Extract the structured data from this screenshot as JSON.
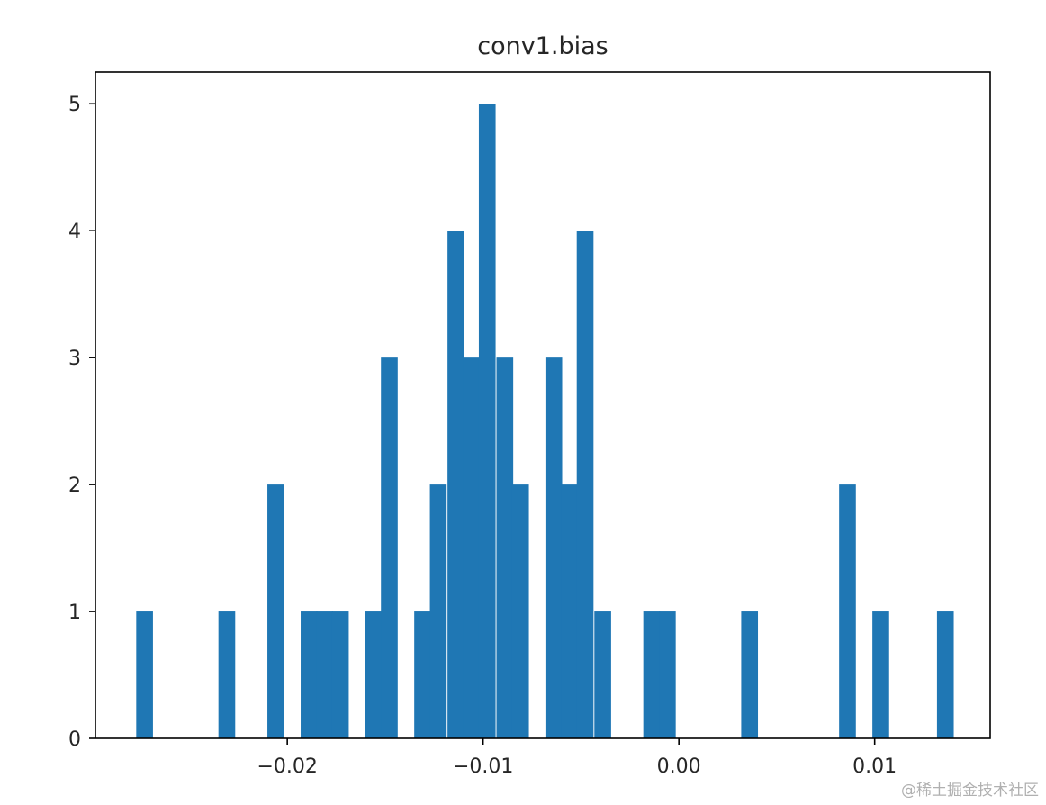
{
  "chart_data": {
    "type": "bar",
    "title": "conv1.bias",
    "xlabel": "",
    "ylabel": "",
    "xlim": [
      -0.0298,
      0.0159
    ],
    "ylim": [
      0,
      5.25
    ],
    "bin_width": 0.000833,
    "bars": [
      {
        "x": -0.0273,
        "y": 1
      },
      {
        "x": -0.0231,
        "y": 1
      },
      {
        "x": -0.0206,
        "y": 2
      },
      {
        "x": -0.0189,
        "y": 1
      },
      {
        "x": -0.0181,
        "y": 1
      },
      {
        "x": -0.0173,
        "y": 1
      },
      {
        "x": -0.0156,
        "y": 1
      },
      {
        "x": -0.0148,
        "y": 3
      },
      {
        "x": -0.0131,
        "y": 1
      },
      {
        "x": -0.0123,
        "y": 2
      },
      {
        "x": -0.0114,
        "y": 4
      },
      {
        "x": -0.0106,
        "y": 3
      },
      {
        "x": -0.0098,
        "y": 5
      },
      {
        "x": -0.0089,
        "y": 3
      },
      {
        "x": -0.0081,
        "y": 2
      },
      {
        "x": -0.0064,
        "y": 3
      },
      {
        "x": -0.0056,
        "y": 2
      },
      {
        "x": -0.0048,
        "y": 4
      },
      {
        "x": -0.0039,
        "y": 1
      },
      {
        "x": -0.0014,
        "y": 1
      },
      {
        "x": -0.0006,
        "y": 1
      },
      {
        "x": 0.0036,
        "y": 1
      },
      {
        "x": 0.0086,
        "y": 2
      },
      {
        "x": 0.0103,
        "y": 1
      },
      {
        "x": 0.0136,
        "y": 1
      }
    ],
    "x_ticks": [
      {
        "value": -0.02,
        "label": "−0.02"
      },
      {
        "value": -0.01,
        "label": "−0.01"
      },
      {
        "value": 0.0,
        "label": "0.00"
      },
      {
        "value": 0.01,
        "label": "0.01"
      }
    ],
    "y_ticks": [
      {
        "value": 0,
        "label": "0"
      },
      {
        "value": 1,
        "label": "1"
      },
      {
        "value": 2,
        "label": "2"
      },
      {
        "value": 3,
        "label": "3"
      },
      {
        "value": 4,
        "label": "4"
      },
      {
        "value": 5,
        "label": "5"
      }
    ],
    "grid": false,
    "colors": {
      "bar": "#1f77b4",
      "axis": "#000000",
      "text": "#262626"
    }
  },
  "watermark": "@稀土掘金技术社区"
}
